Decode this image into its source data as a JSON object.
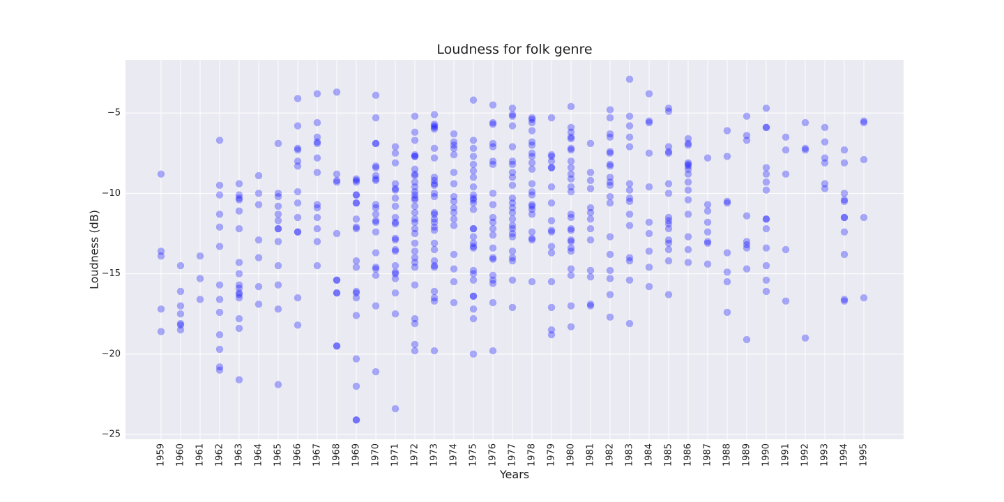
{
  "chart_data": {
    "type": "scatter",
    "title": "Loudness for folk genre",
    "xlabel": "Years",
    "ylabel": "Loudness (dB)",
    "ylim": [
      -25.3,
      -1.7
    ],
    "yticks": [
      -25,
      -20,
      -15,
      -10,
      -5
    ],
    "categories": [
      "1959",
      "1960",
      "1961",
      "1962",
      "1963",
      "1964",
      "1965",
      "1966",
      "1967",
      "1968",
      "1969",
      "1970",
      "1971",
      "1972",
      "1973",
      "1974",
      "1975",
      "1976",
      "1977",
      "1978",
      "1979",
      "1980",
      "1981",
      "1982",
      "1983",
      "1984",
      "1985",
      "1986",
      "1987",
      "1988",
      "1989",
      "1990",
      "1991",
      "1992",
      "1993",
      "1994",
      "1995"
    ],
    "grid": true,
    "marker_color": "#0000ff",
    "marker_alpha": 0.3,
    "background_color": "#eaeaf2",
    "series": [
      {
        "points": [
          {
            "x": "1959",
            "y": [
              -8.8,
              -13.6,
              -13.9,
              -17.2,
              -18.6
            ]
          },
          {
            "x": "1960",
            "y": [
              -14.5,
              -16.1,
              -17.0,
              -17.5,
              -18.1,
              -18.2,
              -18.5
            ]
          },
          {
            "x": "1961",
            "y": [
              -13.9,
              -15.3,
              -16.6
            ]
          },
          {
            "x": "1962",
            "y": [
              -6.7,
              -9.5,
              -10.1,
              -11.3,
              -12.1,
              -13.3,
              -15.7,
              -16.6,
              -17.4,
              -18.8,
              -19.7,
              -20.8,
              -21.0
            ]
          },
          {
            "x": "1963",
            "y": [
              -9.4,
              -10.1,
              -10.3,
              -10.4,
              -11.1,
              -12.2,
              -14.3,
              -15.0,
              -15.7,
              -15.9,
              -16.2,
              -16.3,
              -16.5,
              -17.8,
              -18.4,
              -21.6
            ]
          },
          {
            "x": "1964",
            "y": [
              -8.9,
              -10.0,
              -10.7,
              -12.9,
              -14.0,
              -15.8,
              -16.9
            ]
          },
          {
            "x": "1965",
            "y": [
              -6.9,
              -10.0,
              -10.2,
              -10.8,
              -11.3,
              -11.7,
              -12.2,
              -12.2,
              -13.0,
              -14.5,
              -15.7,
              -17.2,
              -21.9
            ]
          },
          {
            "x": "1966",
            "y": [
              -4.1,
              -5.8,
              -7.2,
              -7.3,
              -8.0,
              -8.3,
              -9.9,
              -10.6,
              -11.5,
              -12.4,
              -12.4,
              -16.5,
              -18.2
            ]
          },
          {
            "x": "1967",
            "y": [
              -3.8,
              -5.6,
              -6.5,
              -6.8,
              -6.9,
              -7.8,
              -8.7,
              -10.7,
              -10.9,
              -11.5,
              -12.2,
              -13.0,
              -14.5
            ]
          },
          {
            "x": "1968",
            "y": [
              -3.7,
              -8.8,
              -9.2,
              -9.3,
              -12.5,
              -15.4,
              -15.4,
              -16.2,
              -16.2,
              -19.5,
              -19.5
            ]
          },
          {
            "x": "1969",
            "y": [
              -9.1,
              -9.2,
              -9.3,
              -10.1,
              -10.1,
              -10.6,
              -10.6,
              -11.6,
              -12.1,
              -12.2,
              -14.2,
              -14.6,
              -16.1,
              -16.2,
              -16.5,
              -17.6,
              -20.3,
              -22.0,
              -24.1,
              -24.1
            ]
          },
          {
            "x": "1970",
            "y": [
              -3.9,
              -5.3,
              -6.9,
              -6.9,
              -8.3,
              -8.4,
              -8.9,
              -9.1,
              -9.2,
              -10.7,
              -10.9,
              -11.3,
              -11.7,
              -11.8,
              -12.4,
              -13.7,
              -14.6,
              -14.7,
              -15.1,
              -17.0,
              -21.1
            ]
          },
          {
            "x": "1971",
            "y": [
              -7.1,
              -7.5,
              -8.1,
              -9.4,
              -9.7,
              -9.8,
              -10.3,
              -10.8,
              -11.5,
              -11.8,
              -11.9,
              -12.8,
              -12.9,
              -13.5,
              -13.6,
              -14.5,
              -14.9,
              -15.0,
              -15.3,
              -16.2,
              -17.5,
              -23.4
            ]
          },
          {
            "x": "1972",
            "y": [
              -5.2,
              -6.2,
              -6.7,
              -7.6,
              -7.7,
              -7.7,
              -8.5,
              -8.8,
              -8.9,
              -9.3,
              -9.6,
              -9.9,
              -10.1,
              -10.3,
              -10.4,
              -10.8,
              -11.2,
              -11.6,
              -11.8,
              -12.2,
              -12.5,
              -13.1,
              -13.6,
              -14.0,
              -14.3,
              -14.6,
              -15.7,
              -17.8,
              -18.1,
              -19.4,
              -19.8
            ]
          },
          {
            "x": "1973",
            "y": [
              -5.1,
              -5.7,
              -5.8,
              -5.9,
              -6.0,
              -7.2,
              -7.8,
              -9.0,
              -9.2,
              -9.4,
              -9.5,
              -10.0,
              -10.2,
              -11.2,
              -11.3,
              -11.6,
              -11.8,
              -12.1,
              -12.3,
              -13.1,
              -13.5,
              -14.2,
              -14.5,
              -14.6,
              -16.1,
              -16.5,
              -16.7,
              -19.8
            ]
          },
          {
            "x": "1974",
            "y": [
              -6.3,
              -6.8,
              -7.0,
              -7.2,
              -7.6,
              -8.7,
              -9.4,
              -10.2,
              -10.5,
              -10.9,
              -11.2,
              -11.6,
              -12.0,
              -13.8,
              -14.7,
              -15.5,
              -16.8
            ]
          },
          {
            "x": "1975",
            "y": [
              -4.2,
              -6.7,
              -7.2,
              -7.7,
              -8.2,
              -8.6,
              -9.0,
              -9.6,
              -10.1,
              -10.3,
              -10.4,
              -10.6,
              -11.0,
              -12.2,
              -12.2,
              -12.7,
              -13.1,
              -13.3,
              -13.4,
              -14.8,
              -15.0,
              -15.4,
              -16.4,
              -16.4,
              -17.2,
              -17.8,
              -20.0
            ]
          },
          {
            "x": "1976",
            "y": [
              -4.5,
              -5.6,
              -5.7,
              -6.9,
              -7.1,
              -8.0,
              -8.2,
              -10.0,
              -10.7,
              -11.5,
              -11.8,
              -12.2,
              -12.6,
              -13.4,
              -14.0,
              -14.1,
              -15.1,
              -15.4,
              -15.6,
              -16.8,
              -19.8
            ]
          },
          {
            "x": "1977",
            "y": [
              -4.7,
              -5.1,
              -5.2,
              -5.8,
              -7.1,
              -8.0,
              -8.2,
              -8.7,
              -9.0,
              -9.5,
              -10.3,
              -10.6,
              -10.9,
              -11.2,
              -11.6,
              -12.0,
              -12.2,
              -12.5,
              -12.7,
              -13.6,
              -14.0,
              -14.2,
              -15.4,
              -17.1
            ]
          },
          {
            "x": "1978",
            "y": [
              -5.3,
              -5.4,
              -5.6,
              -6.1,
              -6.8,
              -7.0,
              -7.5,
              -7.7,
              -8.1,
              -8.5,
              -9.4,
              -9.9,
              -10.1,
              -10.7,
              -10.8,
              -11.0,
              -11.3,
              -12.4,
              -12.8,
              -12.9,
              -15.5
            ]
          },
          {
            "x": "1979",
            "y": [
              -5.3,
              -7.6,
              -7.7,
              -8.0,
              -8.4,
              -8.4,
              -9.6,
              -10.6,
              -11.7,
              -12.3,
              -12.4,
              -13.3,
              -13.7,
              -15.5,
              -17.1,
              -18.5,
              -18.8
            ]
          },
          {
            "x": "1980",
            "y": [
              -4.6,
              -5.9,
              -6.2,
              -6.5,
              -6.6,
              -7.2,
              -7.3,
              -8.0,
              -8.4,
              -8.8,
              -9.1,
              -9.6,
              -9.9,
              -11.3,
              -11.5,
              -12.2,
              -12.3,
              -12.9,
              -13.0,
              -13.4,
              -13.6,
              -14.7,
              -15.1,
              -17.0,
              -18.3
            ]
          },
          {
            "x": "1981",
            "y": [
              -6.9,
              -8.7,
              -9.2,
              -9.7,
              -10.9,
              -11.2,
              -11.6,
              -12.2,
              -12.9,
              -14.8,
              -15.2,
              -16.9,
              -17.0
            ]
          },
          {
            "x": "1982",
            "y": [
              -4.8,
              -5.3,
              -6.3,
              -6.5,
              -7.4,
              -7.5,
              -8.2,
              -8.3,
              -9.0,
              -9.3,
              -9.5,
              -10.2,
              -10.6,
              -12.7,
              -13.8,
              -14.8,
              -15.3,
              -16.3,
              -17.7
            ]
          },
          {
            "x": "1983",
            "y": [
              -2.9,
              -5.2,
              -5.8,
              -6.5,
              -7.1,
              -9.4,
              -9.8,
              -10.3,
              -10.5,
              -11.3,
              -12.0,
              -14.0,
              -14.2,
              -15.4,
              -18.1
            ]
          },
          {
            "x": "1984",
            "y": [
              -3.8,
              -5.5,
              -5.6,
              -7.5,
              -9.6,
              -11.8,
              -12.5,
              -13.6,
              -14.6,
              -15.8
            ]
          },
          {
            "x": "1985",
            "y": [
              -4.7,
              -4.9,
              -7.1,
              -7.4,
              -7.5,
              -9.4,
              -10.0,
              -11.5,
              -11.7,
              -11.9,
              -12.2,
              -12.9,
              -13.1,
              -13.5,
              -14.2,
              -16.3
            ]
          },
          {
            "x": "1986",
            "y": [
              -6.6,
              -6.9,
              -7.0,
              -8.1,
              -8.2,
              -8.3,
              -8.5,
              -8.8,
              -9.3,
              -9.8,
              -10.4,
              -11.3,
              -12.7,
              -13.5,
              -14.3
            ]
          },
          {
            "x": "1987",
            "y": [
              -7.8,
              -10.7,
              -11.1,
              -11.8,
              -12.4,
              -13.0,
              -13.1,
              -14.4
            ]
          },
          {
            "x": "1988",
            "y": [
              -6.1,
              -7.7,
              -10.5,
              -10.6,
              -13.7,
              -14.9,
              -15.5,
              -17.4
            ]
          },
          {
            "x": "1989",
            "y": [
              -5.2,
              -6.4,
              -6.7,
              -11.4,
              -13.0,
              -13.2,
              -13.4,
              -14.7,
              -19.1
            ]
          },
          {
            "x": "1990",
            "y": [
              -4.7,
              -5.9,
              -5.9,
              -8.4,
              -8.8,
              -9.3,
              -9.8,
              -11.6,
              -11.6,
              -12.2,
              -13.4,
              -14.5,
              -15.4,
              -16.1
            ]
          },
          {
            "x": "1991",
            "y": [
              -6.5,
              -7.3,
              -8.8,
              -13.5,
              -16.7
            ]
          },
          {
            "x": "1992",
            "y": [
              -5.6,
              -7.2,
              -7.3,
              -19.0
            ]
          },
          {
            "x": "1993",
            "y": [
              -5.9,
              -6.8,
              -7.8,
              -8.1,
              -9.4,
              -9.7
            ]
          },
          {
            "x": "1994",
            "y": [
              -7.3,
              -8.1,
              -10.0,
              -10.4,
              -10.5,
              -11.5,
              -11.5,
              -12.4,
              -13.8,
              -16.6,
              -16.7
            ]
          },
          {
            "x": "1995",
            "y": [
              -5.5,
              -5.6,
              -7.9,
              -11.5,
              -16.5
            ]
          }
        ]
      }
    ]
  }
}
